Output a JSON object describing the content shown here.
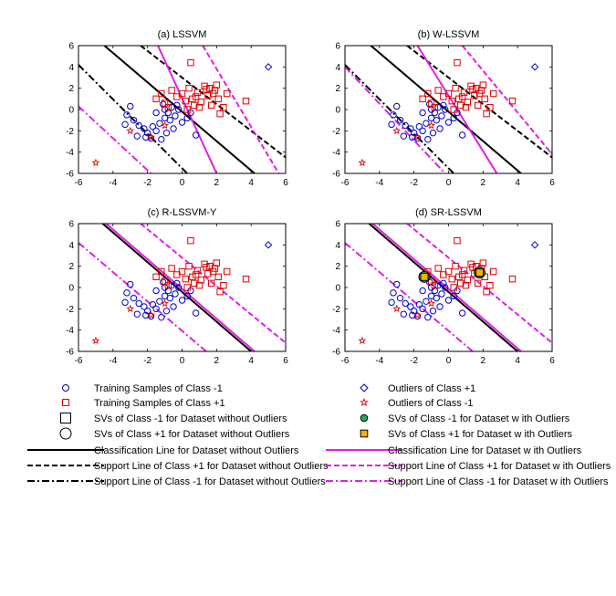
{
  "colors": {
    "class_neg": "#0000c8",
    "class_pos": "#e00000",
    "line_with_outliers": "#e020e0",
    "line_without_outliers": "#000000",
    "sv_neg_outlier_fill": "#22aa55",
    "sv_pos_outlier_fill": "#ffb000"
  },
  "chart_data": [
    {
      "type": "scatter",
      "title": "(a) LSSVM",
      "xlim": [
        -6,
        6
      ],
      "ylim": [
        -6,
        6
      ],
      "xticks": [
        "-6",
        "-4",
        "-2",
        "0",
        "2",
        "4",
        "6"
      ],
      "yticks": [
        "6",
        "4",
        "2",
        "0",
        "-2",
        "-4",
        "-6"
      ],
      "lines": [
        {
          "series": "Classification Line for Dataset without Outliers",
          "style": "solid",
          "color": "black",
          "points": [
            [
              -4.5,
              6
            ],
            [
              4.2,
              -6
            ]
          ]
        },
        {
          "series": "Support Line of Class +1 for Dataset without Outliers",
          "style": "dashed",
          "color": "black",
          "points": [
            [
              -2.4,
              6
            ],
            [
              6,
              -4.5
            ]
          ]
        },
        {
          "series": "Support Line of Class -1 for Dataset without Outliers",
          "style": "dashdot",
          "color": "black",
          "points": [
            [
              -6,
              4.2
            ],
            [
              0.3,
              -6
            ]
          ]
        },
        {
          "series": "Classification Line for Dataset with Outliers",
          "style": "solid",
          "color": "magenta",
          "points": [
            [
              -1.4,
              6
            ],
            [
              2.0,
              -6
            ]
          ]
        },
        {
          "series": "Support Line of Class +1 for Dataset with Outliers",
          "style": "dashed",
          "color": "magenta",
          "points": [
            [
              1.2,
              6
            ],
            [
              5.6,
              -6
            ]
          ]
        },
        {
          "series": "Support Line of Class -1 for Dataset with Outliers",
          "style": "dashdot",
          "color": "magenta",
          "points": [
            [
              -6,
              0.3
            ],
            [
              -1.8,
              -6
            ]
          ]
        }
      ],
      "sv_outlier_markers": []
    },
    {
      "type": "scatter",
      "title": "(b) W-LSSVM",
      "xlim": [
        -6,
        6
      ],
      "ylim": [
        -6,
        6
      ],
      "xticks": [
        "-6",
        "-4",
        "-2",
        "0",
        "2",
        "4",
        "6"
      ],
      "yticks": [
        "6",
        "4",
        "2",
        "0",
        "-2",
        "-4",
        "-6"
      ],
      "lines": [
        {
          "series": "Classification Line for Dataset without Outliers",
          "style": "solid",
          "color": "black",
          "points": [
            [
              -4.5,
              6
            ],
            [
              4.2,
              -6
            ]
          ]
        },
        {
          "series": "Support Line of Class +1 for Dataset without Outliers",
          "style": "dashed",
          "color": "black",
          "points": [
            [
              -2.4,
              6
            ],
            [
              6,
              -4.5
            ]
          ]
        },
        {
          "series": "Support Line of Class -1 for Dataset without Outliers",
          "style": "dashdot",
          "color": "black",
          "points": [
            [
              -6,
              4.2
            ],
            [
              0.3,
              -6
            ]
          ]
        },
        {
          "series": "Classification Line for Dataset with Outliers",
          "style": "solid",
          "color": "magenta",
          "points": [
            [
              -1.8,
              6
            ],
            [
              2.8,
              -6
            ]
          ]
        },
        {
          "series": "Support Line of Class +1 for Dataset with Outliers",
          "style": "dashed",
          "color": "magenta",
          "points": [
            [
              0.8,
              6
            ],
            [
              6,
              -4.2
            ]
          ]
        },
        {
          "series": "Support Line of Class -1 for Dataset with Outliers",
          "style": "dashdot",
          "color": "magenta",
          "points": [
            [
              -6,
              4.0
            ],
            [
              -0.2,
              -6
            ]
          ]
        }
      ],
      "sv_outlier_markers": []
    },
    {
      "type": "scatter",
      "title": "(c) R-LSSVM-Y",
      "xlim": [
        -6,
        6
      ],
      "ylim": [
        -6,
        6
      ],
      "xticks": [
        "-6",
        "-4",
        "-2",
        "0",
        "2",
        "4",
        "6"
      ],
      "yticks": [
        "6",
        "4",
        "2",
        "0",
        "-2",
        "-4",
        "-6"
      ],
      "lines": [
        {
          "series": "Classification Line for Dataset without Outliers",
          "style": "solid",
          "color": "black",
          "points": [
            [
              -4.6,
              6
            ],
            [
              4.0,
              -6
            ]
          ]
        },
        {
          "series": "Classification Line for Dataset with Outliers",
          "style": "solid",
          "color": "magenta",
          "points": [
            [
              -4.4,
              6
            ],
            [
              4.2,
              -6
            ]
          ]
        },
        {
          "series": "Support Line of Class +1 for Dataset with Outliers",
          "style": "dashed",
          "color": "magenta",
          "points": [
            [
              -2.4,
              6
            ],
            [
              6,
              -5.2
            ]
          ]
        },
        {
          "series": "Support Line of Class -1 for Dataset with Outliers",
          "style": "dashdot",
          "color": "magenta",
          "points": [
            [
              -6,
              4.2
            ],
            [
              1.4,
              -6
            ]
          ]
        }
      ],
      "sv_outlier_markers": []
    },
    {
      "type": "scatter",
      "title": "(d) SR-LSSVM",
      "xlim": [
        -6,
        6
      ],
      "ylim": [
        -6,
        6
      ],
      "xticks": [
        "-6",
        "-4",
        "-2",
        "0",
        "2",
        "4",
        "6"
      ],
      "yticks": [
        "6",
        "4",
        "2",
        "0",
        "-2",
        "-4",
        "-6"
      ],
      "lines": [
        {
          "series": "Classification Line for Dataset without Outliers",
          "style": "solid",
          "color": "black",
          "points": [
            [
              -4.6,
              6
            ],
            [
              4.0,
              -6
            ]
          ]
        },
        {
          "series": "Classification Line for Dataset with Outliers",
          "style": "solid",
          "color": "magenta",
          "points": [
            [
              -4.4,
              6
            ],
            [
              4.2,
              -6
            ]
          ]
        },
        {
          "series": "Support Line of Class +1 for Dataset with Outliers",
          "style": "dashed",
          "color": "magenta",
          "points": [
            [
              -2.4,
              6
            ],
            [
              6,
              -5.2
            ]
          ]
        },
        {
          "series": "Support Line of Class -1 for Dataset with Outliers",
          "style": "dashdot",
          "color": "magenta",
          "points": [
            [
              -6,
              4.2
            ],
            [
              1.4,
              -6
            ]
          ]
        }
      ],
      "sv_outlier_markers": [
        {
          "series": "SVs of Class -1 for Dataset with Outliers",
          "marker": "circle",
          "x": -1.4,
          "y": 1.0
        },
        {
          "series": "SVs of Class +1 for Dataset with Outliers",
          "marker": "square",
          "x": -1.4,
          "y": 1.0
        },
        {
          "series": "SVs of Class -1 for Dataset with Outliers",
          "marker": "circle",
          "x": 1.8,
          "y": 1.4
        },
        {
          "series": "SVs of Class +1 for Dataset with Outliers",
          "marker": "square",
          "x": 1.8,
          "y": 1.4
        }
      ]
    }
  ],
  "points": {
    "class_neg": [
      [
        -3.0,
        0.3
      ],
      [
        -3.2,
        -0.5
      ],
      [
        -2.8,
        -1.0
      ],
      [
        -2.5,
        -1.5
      ],
      [
        -2.2,
        -1.8
      ],
      [
        -2.0,
        -2.2
      ],
      [
        -1.8,
        -2.7
      ],
      [
        -1.5,
        -2.0
      ],
      [
        -1.3,
        -1.3
      ],
      [
        -1.0,
        -0.8
      ],
      [
        -0.8,
        -0.3
      ],
      [
        -0.6,
        0.2
      ],
      [
        -0.4,
        -0.6
      ],
      [
        -0.2,
        0.0
      ],
      [
        0.0,
        -1.2
      ],
      [
        0.3,
        -0.8
      ],
      [
        -1.2,
        -2.8
      ],
      [
        -0.9,
        -2.2
      ],
      [
        -0.5,
        -1.8
      ],
      [
        -1.1,
        0.5
      ],
      [
        -2.6,
        -2.5
      ],
      [
        -3.3,
        -1.4
      ],
      [
        0.8,
        -2.4
      ],
      [
        -0.7,
        -1.0
      ],
      [
        -1.5,
        -0.3
      ],
      [
        -2.1,
        -2.6
      ],
      [
        -1.0,
        0.0
      ],
      [
        0.5,
        -0.3
      ],
      [
        -0.3,
        0.4
      ],
      [
        -1.7,
        -1.6
      ]
    ],
    "class_pos": [
      [
        -1.5,
        1.0
      ],
      [
        -1.0,
        0.6
      ],
      [
        -0.8,
        0.2
      ],
      [
        -0.3,
        1.2
      ],
      [
        0.0,
        1.5
      ],
      [
        0.2,
        0.8
      ],
      [
        0.4,
        2.0
      ],
      [
        0.6,
        1.0
      ],
      [
        0.9,
        1.6
      ],
      [
        1.1,
        0.7
      ],
      [
        1.3,
        2.2
      ],
      [
        1.5,
        1.3
      ],
      [
        1.7,
        0.4
      ],
      [
        1.9,
        1.8
      ],
      [
        2.1,
        1.0
      ],
      [
        2.4,
        0.2
      ],
      [
        2.6,
        1.5
      ],
      [
        0.3,
        0.0
      ],
      [
        1.0,
        0.2
      ],
      [
        2.0,
        2.3
      ],
      [
        -0.6,
        1.8
      ],
      [
        0.5,
        4.4
      ],
      [
        3.7,
        0.8
      ],
      [
        2.2,
        -0.4
      ],
      [
        1.4,
        1.9
      ],
      [
        0.8,
        1.2
      ],
      [
        1.8,
        1.5
      ],
      [
        -1.2,
        1.5
      ],
      [
        0.7,
        0.4
      ],
      [
        1.6,
        2.0
      ]
    ],
    "outliers_pos": [
      [
        5.0,
        4.0
      ]
    ],
    "outliers_neg": [
      [
        -5.0,
        -5.0
      ],
      [
        -3.0,
        -2.0
      ],
      [
        -1.8,
        -2.6
      ],
      [
        -1.0,
        -1.5
      ]
    ]
  },
  "legend": {
    "left": [
      {
        "marker": "circle-blue",
        "label": "Training Samples of Class -1"
      },
      {
        "marker": "square-red",
        "label": "Training Samples of Class +1"
      },
      {
        "marker": "square-black",
        "label": "SVs of Class -1 for Dataset without Outliers"
      },
      {
        "marker": "circle-black",
        "label": "SVs of Class +1 for Dataset without Outliers"
      },
      {
        "marker": "line-solid-black",
        "label": "Classification Line for Dataset without Outliers"
      },
      {
        "marker": "line-dashed-black",
        "label": "Support Line of Class +1 for Dataset without Outliers"
      },
      {
        "marker": "line-dashdot-black",
        "label": "Support Line of Class -1 for Dataset without Outliers"
      }
    ],
    "right": [
      {
        "marker": "diamond-blue",
        "label": "Outliers of Class +1"
      },
      {
        "marker": "star-red",
        "label": "Outliers of Class -1"
      },
      {
        "marker": "circle-green",
        "label": "SVs of Class -1 for Dataset w ith Outliers"
      },
      {
        "marker": "square-orange",
        "label": "SVs of Class +1 for Dataset w ith Outliers"
      },
      {
        "marker": "line-solid-magenta",
        "label": "Classification Line for Dataset w ith Outliers"
      },
      {
        "marker": "line-dashed-magenta",
        "label": "Support Line of Class +1 for Dataset w ith Outliers"
      },
      {
        "marker": "line-dashdot-magenta",
        "label": "Support Line of Class -1 for Dataset w ith Outliers"
      }
    ]
  }
}
